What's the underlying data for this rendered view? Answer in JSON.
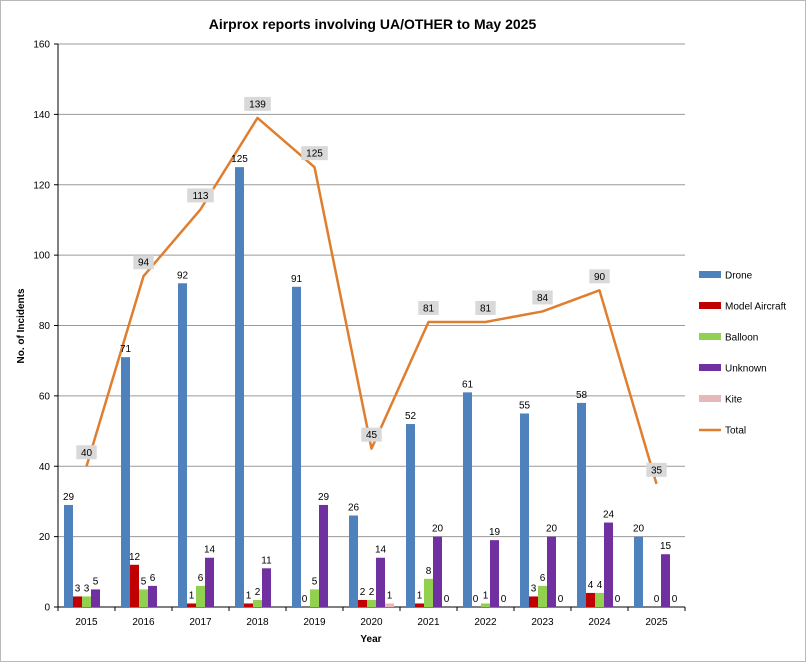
{
  "chart_data": {
    "type": "bar",
    "title": "Airprox reports involving UA/OTHER to May 2025",
    "xlabel": "Year",
    "ylabel": "No. of Incidents",
    "ylim": [
      0,
      160
    ],
    "yticks": [
      0,
      20,
      40,
      60,
      80,
      100,
      120,
      140,
      160
    ],
    "grid": true,
    "legend_position": "right",
    "categories": [
      "2015",
      "2016",
      "2017",
      "2018",
      "2019",
      "2020",
      "2021",
      "2022",
      "2023",
      "2024",
      "2025"
    ],
    "series": [
      {
        "name": "Drone",
        "kind": "bar",
        "color": "#4f81bd",
        "values": [
          29,
          71,
          92,
          125,
          91,
          26,
          52,
          61,
          55,
          58,
          20
        ],
        "labels": [
          "29",
          "71",
          "92",
          "125",
          "91",
          "26",
          "52",
          "61",
          "55",
          "58",
          "20"
        ]
      },
      {
        "name": "Model Aircraft",
        "kind": "bar",
        "color": "#c00000",
        "values": [
          3,
          12,
          1,
          1,
          0,
          2,
          1,
          0,
          3,
          4,
          0
        ],
        "labels": [
          "3",
          "12",
          "1",
          "1",
          "",
          "2",
          "1",
          "",
          "3",
          "4",
          ""
        ]
      },
      {
        "name": "Balloon",
        "kind": "bar",
        "color": "#92d050",
        "values": [
          3,
          5,
          6,
          2,
          5,
          2,
          8,
          1,
          6,
          4,
          0
        ],
        "labels": [
          "3",
          "5",
          "6",
          "2",
          "5",
          "2",
          "8",
          "1",
          "6",
          "4",
          "0"
        ]
      },
      {
        "name": "Unknown",
        "kind": "bar",
        "color": "#7030a0",
        "values": [
          5,
          6,
          14,
          11,
          29,
          14,
          20,
          19,
          20,
          24,
          15
        ],
        "labels": [
          "5",
          "6",
          "14",
          "11",
          "29",
          "14",
          "20",
          "19",
          "20",
          "24",
          "15"
        ]
      },
      {
        "name": "Kite",
        "kind": "bar",
        "color": "#e6b9b8",
        "values": [
          0,
          0,
          0,
          0,
          0,
          1,
          0,
          0,
          0,
          0,
          0
        ],
        "labels": [
          "",
          "",
          "",
          "",
          "",
          "1",
          "0",
          "0",
          "0",
          "0",
          "0"
        ]
      },
      {
        "name": "Total",
        "kind": "line",
        "color": "#e07e2f",
        "values": [
          40,
          94,
          113,
          139,
          125,
          45,
          81,
          81,
          84,
          90,
          35
        ],
        "labels": [
          "40",
          "94",
          "113",
          "139",
          "125",
          "45",
          "81",
          "81",
          "84",
          "90",
          "35"
        ]
      }
    ],
    "extra_labels": [
      {
        "text": "0",
        "category": "2019",
        "value": 0
      },
      {
        "text": "0",
        "category": "2022",
        "value": 0
      }
    ]
  }
}
